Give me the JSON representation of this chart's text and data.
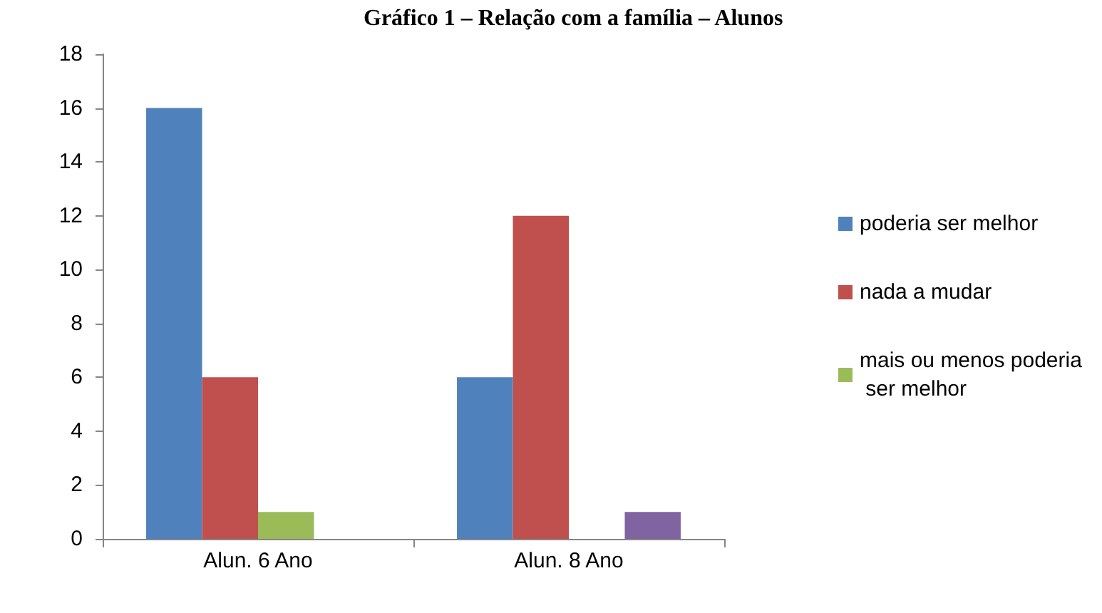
{
  "chart_data": {
    "type": "bar",
    "title": "Gráfico 1 – Relação com a família – Alunos",
    "categories": [
      "Alun. 6 Ano",
      "Alun. 8 Ano"
    ],
    "series": [
      {
        "name": "poderia ser melhor",
        "color": "#4f81bd",
        "values": [
          16,
          6
        ]
      },
      {
        "name": "nada a mudar",
        "color": "#c0504d",
        "values": [
          6,
          12
        ]
      },
      {
        "name": "mais ou menos poderia ser melhor",
        "color": "#9bbb59",
        "values": [
          1,
          null
        ]
      },
      {
        "color": "#8064a2",
        "values": [
          null,
          1
        ]
      }
    ],
    "ylim": [
      0,
      18
    ],
    "yticks": [
      0,
      2,
      4,
      6,
      8,
      10,
      12,
      14,
      16,
      18
    ],
    "grid": false,
    "legend": "right"
  }
}
